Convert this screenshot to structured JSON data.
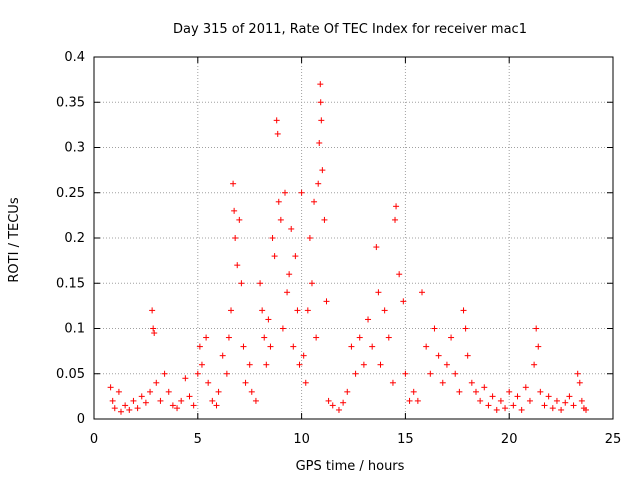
{
  "chart_data": {
    "type": "scatter",
    "title": "Day 315 of 2011, Rate Of TEC Index for receiver mac1",
    "xlabel": "GPS time / hours",
    "ylabel": "ROTI / TECUs",
    "xlim": [
      0,
      25
    ],
    "ylim": [
      0,
      0.4
    ],
    "xticks": [
      0,
      5,
      10,
      15,
      20,
      25
    ],
    "xtick_labels": [
      "0",
      "5",
      "10",
      "15",
      "20",
      "25"
    ],
    "yticks": [
      0,
      0.05,
      0.1,
      0.15,
      0.2,
      0.25,
      0.3,
      0.35,
      0.4
    ],
    "ytick_labels": [
      "0",
      "0.05",
      "0.1",
      "0.15",
      "0.2",
      "0.25",
      "0.3",
      "0.35",
      "0.4"
    ],
    "grid": true,
    "marker": "+",
    "color": "#ff0000",
    "series": [
      {
        "points": [
          [
            0.8,
            0.035
          ],
          [
            0.9,
            0.02
          ],
          [
            1.0,
            0.012
          ],
          [
            1.2,
            0.03
          ],
          [
            1.3,
            0.008
          ],
          [
            1.5,
            0.015
          ],
          [
            1.7,
            0.01
          ],
          [
            1.9,
            0.02
          ],
          [
            2.1,
            0.012
          ],
          [
            2.3,
            0.025
          ],
          [
            2.5,
            0.018
          ],
          [
            2.7,
            0.03
          ],
          [
            2.8,
            0.12
          ],
          [
            2.85,
            0.1
          ],
          [
            2.9,
            0.095
          ],
          [
            3.0,
            0.04
          ],
          [
            3.2,
            0.02
          ],
          [
            3.4,
            0.05
          ],
          [
            3.6,
            0.03
          ],
          [
            3.8,
            0.015
          ],
          [
            4.0,
            0.012
          ],
          [
            4.2,
            0.02
          ],
          [
            4.4,
            0.045
          ],
          [
            4.6,
            0.025
          ],
          [
            4.8,
            0.015
          ],
          [
            5.0,
            0.05
          ],
          [
            5.1,
            0.08
          ],
          [
            5.2,
            0.06
          ],
          [
            5.4,
            0.09
          ],
          [
            5.5,
            0.04
          ],
          [
            5.7,
            0.02
          ],
          [
            5.9,
            0.015
          ],
          [
            6.0,
            0.03
          ],
          [
            6.2,
            0.07
          ],
          [
            6.4,
            0.05
          ],
          [
            6.5,
            0.09
          ],
          [
            6.6,
            0.12
          ],
          [
            6.7,
            0.26
          ],
          [
            6.75,
            0.23
          ],
          [
            6.8,
            0.2
          ],
          [
            6.9,
            0.17
          ],
          [
            7.0,
            0.22
          ],
          [
            7.1,
            0.15
          ],
          [
            7.2,
            0.08
          ],
          [
            7.3,
            0.04
          ],
          [
            7.5,
            0.06
          ],
          [
            7.6,
            0.03
          ],
          [
            7.8,
            0.02
          ],
          [
            8.0,
            0.15
          ],
          [
            8.1,
            0.12
          ],
          [
            8.2,
            0.09
          ],
          [
            8.3,
            0.06
          ],
          [
            8.4,
            0.11
          ],
          [
            8.5,
            0.08
          ],
          [
            8.6,
            0.2
          ],
          [
            8.7,
            0.18
          ],
          [
            8.8,
            0.33
          ],
          [
            8.85,
            0.315
          ],
          [
            8.9,
            0.24
          ],
          [
            9.0,
            0.22
          ],
          [
            9.1,
            0.1
          ],
          [
            9.2,
            0.25
          ],
          [
            9.3,
            0.14
          ],
          [
            9.4,
            0.16
          ],
          [
            9.5,
            0.21
          ],
          [
            9.6,
            0.08
          ],
          [
            9.7,
            0.18
          ],
          [
            9.8,
            0.12
          ],
          [
            9.9,
            0.06
          ],
          [
            10.0,
            0.25
          ],
          [
            10.1,
            0.07
          ],
          [
            10.2,
            0.04
          ],
          [
            10.3,
            0.12
          ],
          [
            10.4,
            0.2
          ],
          [
            10.5,
            0.15
          ],
          [
            10.6,
            0.24
          ],
          [
            10.7,
            0.09
          ],
          [
            10.8,
            0.26
          ],
          [
            10.85,
            0.305
          ],
          [
            10.9,
            0.37
          ],
          [
            10.92,
            0.35
          ],
          [
            10.95,
            0.33
          ],
          [
            11.0,
            0.275
          ],
          [
            11.1,
            0.22
          ],
          [
            11.2,
            0.13
          ],
          [
            11.3,
            0.02
          ],
          [
            11.5,
            0.015
          ],
          [
            11.8,
            0.01
          ],
          [
            12.0,
            0.018
          ],
          [
            12.2,
            0.03
          ],
          [
            12.4,
            0.08
          ],
          [
            12.6,
            0.05
          ],
          [
            12.8,
            0.09
          ],
          [
            13.0,
            0.06
          ],
          [
            13.2,
            0.11
          ],
          [
            13.4,
            0.08
          ],
          [
            13.6,
            0.19
          ],
          [
            13.7,
            0.14
          ],
          [
            13.8,
            0.06
          ],
          [
            14.0,
            0.12
          ],
          [
            14.2,
            0.09
          ],
          [
            14.4,
            0.04
          ],
          [
            14.5,
            0.22
          ],
          [
            14.55,
            0.235
          ],
          [
            14.7,
            0.16
          ],
          [
            14.9,
            0.13
          ],
          [
            15.0,
            0.05
          ],
          [
            15.2,
            0.02
          ],
          [
            15.4,
            0.03
          ],
          [
            15.6,
            0.02
          ],
          [
            15.8,
            0.14
          ],
          [
            16.0,
            0.08
          ],
          [
            16.2,
            0.05
          ],
          [
            16.4,
            0.1
          ],
          [
            16.6,
            0.07
          ],
          [
            16.8,
            0.04
          ],
          [
            17.0,
            0.06
          ],
          [
            17.2,
            0.09
          ],
          [
            17.4,
            0.05
          ],
          [
            17.6,
            0.03
          ],
          [
            17.8,
            0.12
          ],
          [
            17.9,
            0.1
          ],
          [
            18.0,
            0.07
          ],
          [
            18.2,
            0.04
          ],
          [
            18.4,
            0.03
          ],
          [
            18.6,
            0.02
          ],
          [
            18.8,
            0.035
          ],
          [
            19.0,
            0.015
          ],
          [
            19.2,
            0.025
          ],
          [
            19.4,
            0.01
          ],
          [
            19.6,
            0.02
          ],
          [
            19.8,
            0.012
          ],
          [
            20.0,
            0.03
          ],
          [
            20.2,
            0.015
          ],
          [
            20.4,
            0.025
          ],
          [
            20.6,
            0.01
          ],
          [
            20.8,
            0.035
          ],
          [
            21.0,
            0.02
          ],
          [
            21.2,
            0.06
          ],
          [
            21.3,
            0.1
          ],
          [
            21.4,
            0.08
          ],
          [
            21.5,
            0.03
          ],
          [
            21.7,
            0.015
          ],
          [
            21.9,
            0.025
          ],
          [
            22.1,
            0.012
          ],
          [
            22.3,
            0.02
          ],
          [
            22.5,
            0.01
          ],
          [
            22.7,
            0.018
          ],
          [
            22.9,
            0.025
          ],
          [
            23.1,
            0.015
          ],
          [
            23.3,
            0.05
          ],
          [
            23.4,
            0.04
          ],
          [
            23.5,
            0.02
          ],
          [
            23.6,
            0.012
          ],
          [
            23.7,
            0.01
          ]
        ]
      }
    ]
  }
}
